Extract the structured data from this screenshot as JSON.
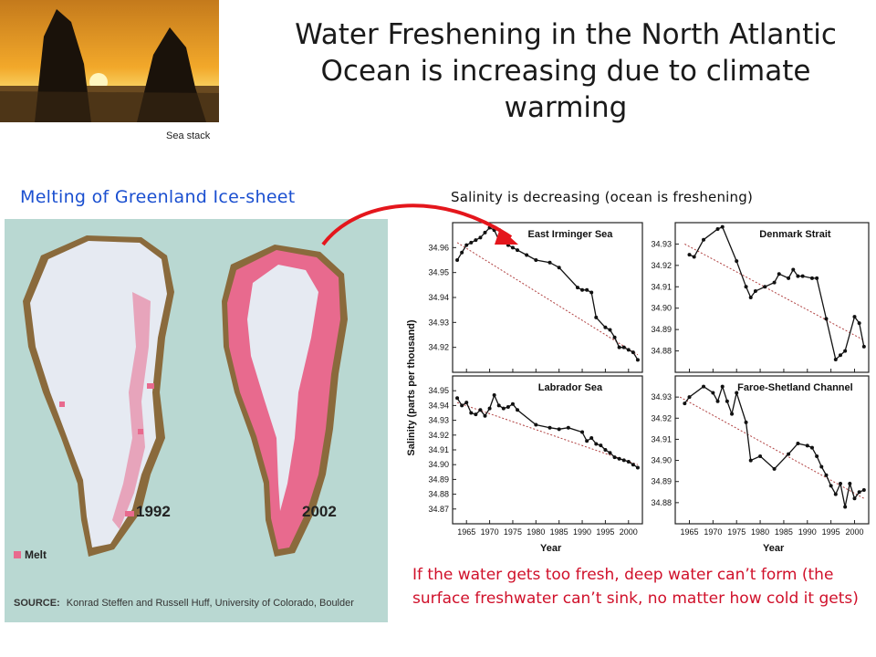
{
  "slide": {
    "title": "Water Freshening in the North Atlantic Ocean is increasing due to climate warming",
    "greenland_heading": "Melting of Greenland Ice-sheet",
    "salinity_heading": "Salinity is decreasing (ocean is freshening)",
    "note": "If the water gets too fresh, deep water can’t form (the surface freshwater can’t sink, no matter how cold it gets)",
    "photo_caption": "Sea stack"
  },
  "map": {
    "year_left": "1992",
    "year_right": "2002",
    "legend_label": "Melt",
    "source_label": "SOURCE:",
    "source_text": "Konrad Steffen and Russell Huff, University of Colorado, Boulder",
    "colors": {
      "background": "#b9d8d2",
      "ice": "#e6eaf2",
      "melt": "#e86a8e",
      "rock": "#8a6a3c"
    }
  },
  "chart_data": [
    {
      "type": "line",
      "title": "East Irminger Sea",
      "xlabel": "Year",
      "ylabel": "Salinity (parts per thousand)",
      "xlim": [
        1962,
        2003
      ],
      "ylim": [
        34.91,
        34.97
      ],
      "yticks": [
        34.92,
        34.93,
        34.94,
        34.95,
        34.96
      ],
      "xticks": [
        1965,
        1970,
        1975,
        1980,
        1985,
        1990,
        1995,
        2000
      ],
      "trend": [
        [
          1963,
          34.962
        ],
        [
          2002,
          34.917
        ]
      ],
      "x": [
        1963,
        1964,
        1965,
        1966,
        1967,
        1968,
        1969,
        1970,
        1971,
        1972,
        1973,
        1974,
        1975,
        1976,
        1978,
        1980,
        1983,
        1985,
        1989,
        1990,
        1991,
        1992,
        1993,
        1995,
        1996,
        1997,
        1998,
        1999,
        2000,
        2001,
        2002
      ],
      "y": [
        34.955,
        34.958,
        34.961,
        34.962,
        34.963,
        34.964,
        34.966,
        34.968,
        34.967,
        34.963,
        34.964,
        34.961,
        34.96,
        34.959,
        34.957,
        34.955,
        34.954,
        34.952,
        34.944,
        34.943,
        34.943,
        34.942,
        34.932,
        34.928,
        34.927,
        34.924,
        34.92,
        34.92,
        34.919,
        34.918,
        34.915
      ]
    },
    {
      "type": "line",
      "title": "Denmark Strait",
      "xlim": [
        1962,
        2003
      ],
      "ylim": [
        34.87,
        34.94
      ],
      "yticks": [
        34.88,
        34.89,
        34.9,
        34.91,
        34.92,
        34.93
      ],
      "trend": [
        [
          1964,
          34.93
        ],
        [
          2002,
          34.885
        ]
      ],
      "x": [
        1965,
        1966,
        1968,
        1971,
        1972,
        1975,
        1977,
        1978,
        1979,
        1981,
        1983,
        1984,
        1986,
        1987,
        1988,
        1989,
        1991,
        1992,
        1994,
        1996,
        1997,
        1998,
        2000,
        2001,
        2002
      ],
      "y": [
        34.925,
        34.924,
        34.932,
        34.937,
        34.938,
        34.922,
        34.91,
        34.905,
        34.908,
        34.91,
        34.912,
        34.916,
        34.914,
        34.918,
        34.915,
        34.915,
        34.914,
        34.914,
        34.895,
        34.876,
        34.878,
        34.88,
        34.896,
        34.893,
        34.882
      ]
    },
    {
      "type": "line",
      "title": "Labrador Sea",
      "xlim": [
        1962,
        2003
      ],
      "ylim": [
        34.86,
        34.96
      ],
      "yticks": [
        34.87,
        34.88,
        34.89,
        34.9,
        34.91,
        34.92,
        34.93,
        34.94,
        34.95
      ],
      "trend": [
        [
          1963,
          34.942
        ],
        [
          2002,
          34.9
        ]
      ],
      "x": [
        1963,
        1964,
        1965,
        1966,
        1967,
        1968,
        1969,
        1970,
        1971,
        1972,
        1973,
        1974,
        1975,
        1976,
        1980,
        1983,
        1985,
        1987,
        1990,
        1991,
        1992,
        1993,
        1994,
        1995,
        1996,
        1997,
        1998,
        1999,
        2000,
        2001,
        2002
      ],
      "y": [
        34.945,
        34.94,
        34.942,
        34.935,
        34.934,
        34.937,
        34.933,
        34.938,
        34.947,
        34.94,
        34.938,
        34.939,
        34.941,
        34.937,
        34.927,
        34.925,
        34.924,
        34.925,
        34.922,
        34.916,
        34.918,
        34.914,
        34.913,
        34.91,
        34.908,
        34.905,
        34.904,
        34.903,
        34.902,
        34.9,
        34.898
      ]
    },
    {
      "type": "line",
      "title": "Faroe-Shetland Channel",
      "xlim": [
        1962,
        2003
      ],
      "ylim": [
        34.87,
        34.94
      ],
      "yticks": [
        34.88,
        34.89,
        34.9,
        34.91,
        34.92,
        34.93
      ],
      "trend": [
        [
          1963,
          34.93
        ],
        [
          2002,
          34.882
        ]
      ],
      "x": [
        1964,
        1965,
        1968,
        1970,
        1971,
        1972,
        1973,
        1974,
        1975,
        1977,
        1978,
        1980,
        1983,
        1986,
        1988,
        1990,
        1991,
        1992,
        1993,
        1994,
        1995,
        1996,
        1997,
        1998,
        1999,
        2000,
        2001,
        2002
      ],
      "y": [
        34.927,
        34.93,
        34.935,
        34.932,
        34.928,
        34.935,
        34.928,
        34.922,
        34.932,
        34.918,
        34.9,
        34.902,
        34.896,
        34.903,
        34.908,
        34.907,
        34.906,
        34.902,
        34.897,
        34.893,
        34.888,
        34.884,
        34.889,
        34.878,
        34.889,
        34.882,
        34.885,
        34.886
      ]
    }
  ]
}
